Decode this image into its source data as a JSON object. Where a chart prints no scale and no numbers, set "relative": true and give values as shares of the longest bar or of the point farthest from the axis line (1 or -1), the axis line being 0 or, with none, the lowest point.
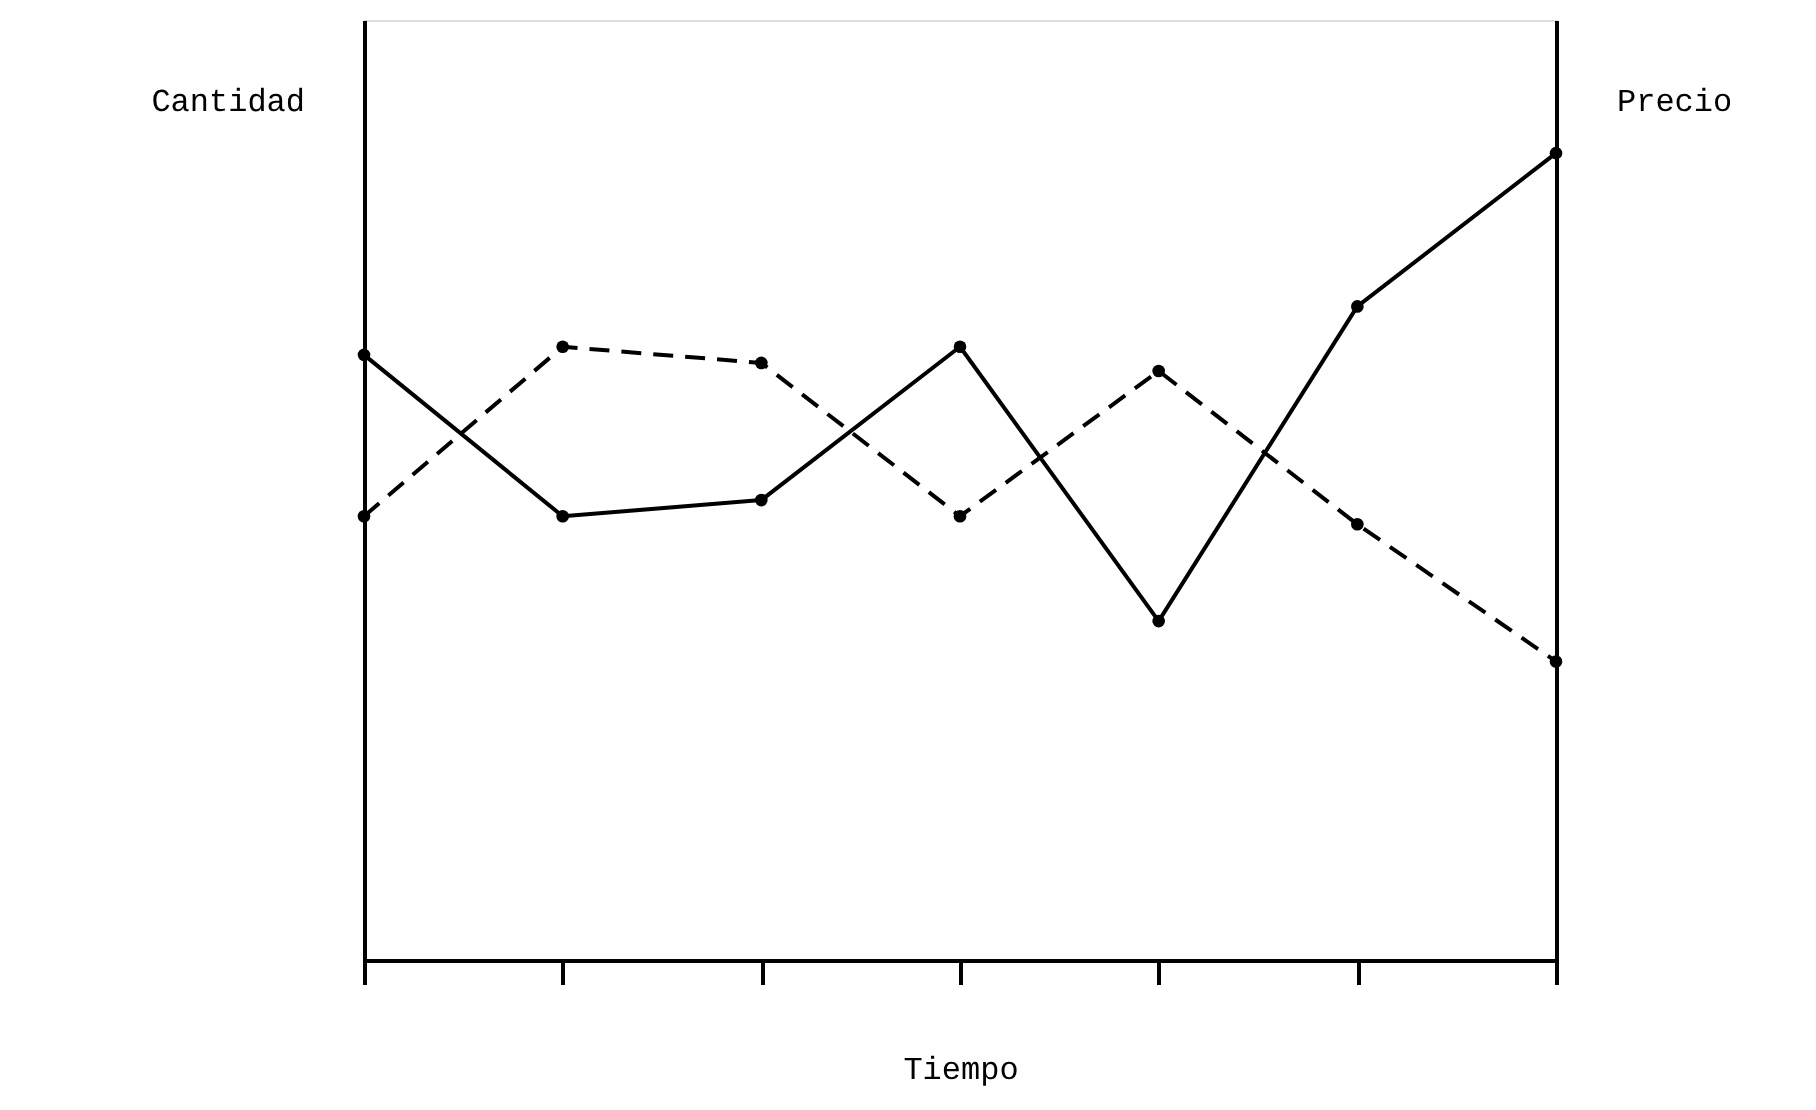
{
  "chart_data": {
    "type": "line",
    "relative": true,
    "ylabel": "Cantidad",
    "y2label": "Precio",
    "xlabel": "Tiempo",
    "categories": [
      null,
      null,
      null,
      null,
      null,
      null,
      null
    ],
    "marker": "circle",
    "grid": false,
    "series": [
      {
        "color": "#000000",
        "line_style": "solid",
        "values": [
          0.75,
          0.55,
          0.57,
          0.76,
          0.42,
          0.81,
          1.0
        ]
      },
      {
        "color": "#000000",
        "line_style": "dashed",
        "values": [
          0.55,
          0.76,
          0.74,
          0.55,
          0.73,
          0.54,
          0.37
        ]
      }
    ]
  }
}
